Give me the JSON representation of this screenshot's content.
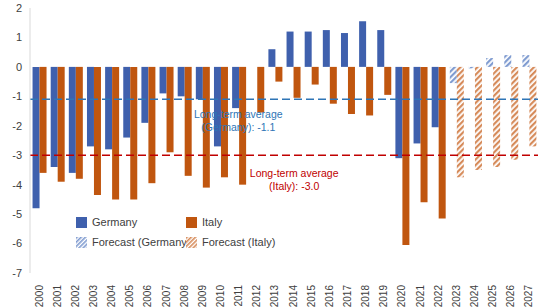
{
  "chart_data": {
    "type": "bar",
    "categories": [
      "2000",
      "2001",
      "2002",
      "2003",
      "2004",
      "2005",
      "2006",
      "2007",
      "2008",
      "2009",
      "2010",
      "2011",
      "2012",
      "2013",
      "2014",
      "2015",
      "2016",
      "2017",
      "2018",
      "2019",
      "2020",
      "2021",
      "2022",
      "2023",
      "2024",
      "2025",
      "2026",
      "2027"
    ],
    "series": [
      {
        "name": "Germany",
        "color": "#3f60ad",
        "values": [
          -4.8,
          -3.4,
          -3.6,
          -2.7,
          -2.8,
          -2.4,
          -1.9,
          -0.9,
          -1.0,
          -1.1,
          -2.7,
          -1.4,
          0,
          0.6,
          1.2,
          1.2,
          1.25,
          1.15,
          1.55,
          1.25,
          -3.1,
          -2.6,
          -2.05,
          null,
          null,
          null,
          null,
          null
        ]
      },
      {
        "name": "Italy",
        "color": "#c0560f",
        "values": [
          -3.6,
          -3.9,
          -3.8,
          -4.35,
          -4.5,
          -4.5,
          -3.95,
          -2.9,
          -3.7,
          -4.1,
          -3.75,
          -4.0,
          -1.55,
          -0.5,
          -1.05,
          -0.6,
          -1.25,
          -1.6,
          -1.65,
          -0.95,
          -6.05,
          -4.6,
          -5.15,
          null,
          null,
          null,
          null,
          null
        ]
      },
      {
        "name": "Forecast (Germany)",
        "color": "#7f9bd0",
        "values": [
          null,
          null,
          null,
          null,
          null,
          null,
          null,
          null,
          null,
          null,
          null,
          null,
          null,
          null,
          null,
          null,
          null,
          null,
          null,
          null,
          null,
          null,
          null,
          -0.55,
          -0.05,
          0.3,
          0.4,
          0.4
        ]
      },
      {
        "name": "Forecast (Italy)",
        "color": "#d68b5a",
        "values": [
          null,
          null,
          null,
          null,
          null,
          null,
          null,
          null,
          null,
          null,
          null,
          null,
          null,
          null,
          null,
          null,
          null,
          null,
          null,
          null,
          null,
          null,
          null,
          -3.75,
          -3.5,
          -3.4,
          -3.15,
          -2.7
        ]
      }
    ],
    "reference_lines": [
      {
        "value": -1.1,
        "color": "#2e75b6",
        "label_lines": [
          "Long-term average",
          "(Germany): -1.1"
        ]
      },
      {
        "value": -3.0,
        "color": "#c00000",
        "label_lines": [
          "Long-term average",
          "(Italy): -3.0"
        ]
      }
    ],
    "ylim": [
      -7,
      2
    ],
    "yticks": [
      -7,
      -6,
      -5,
      -4,
      -3,
      -2,
      -1,
      0,
      1,
      2
    ],
    "grid": false,
    "legend": "lower left"
  }
}
